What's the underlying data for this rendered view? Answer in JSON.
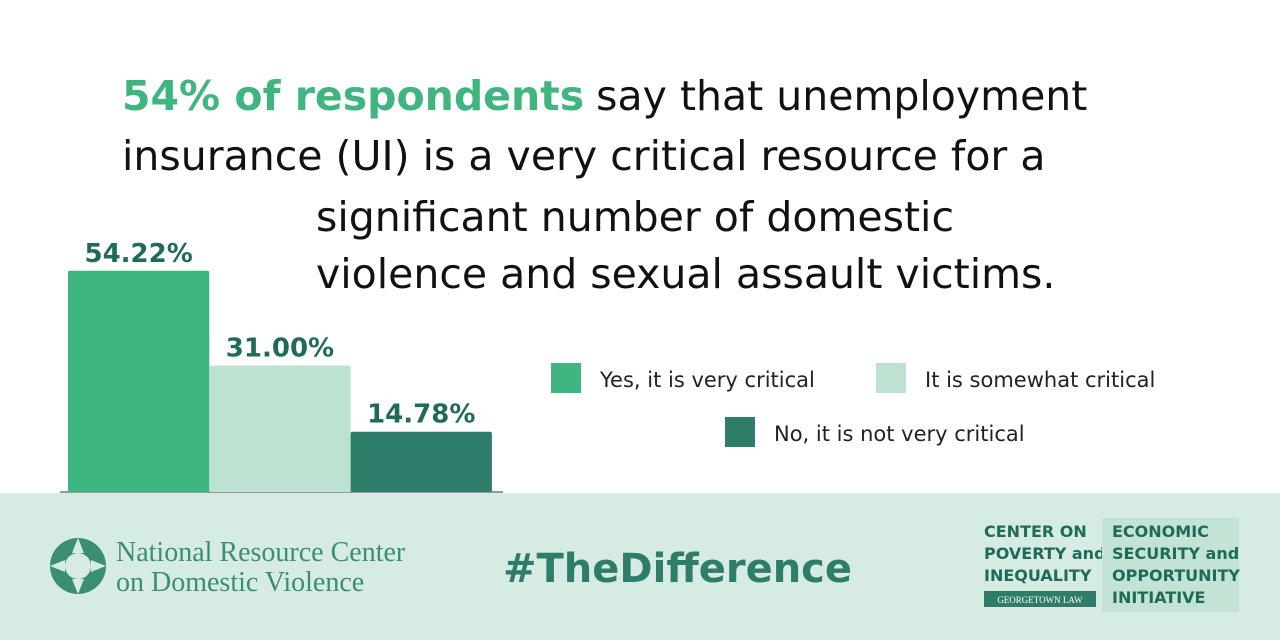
{
  "chart_data": {
    "type": "bar",
    "title": {
      "highlight": "54% of respondents",
      "lines": [
        "say that unemployment",
        "insurance (UI) is a very critical resource for a",
        "significant number of domestic",
        "violence and sexual assault victims."
      ]
    },
    "series": [
      {
        "name": "Yes, it is very critical",
        "color": "#3fb67f",
        "values": [
          54.22
        ],
        "value_labels": [
          "54.22%"
        ]
      },
      {
        "name": "It is somewhat critical",
        "color": "#bde2d1",
        "values": [
          31.0
        ],
        "value_labels": [
          "31.00%"
        ]
      },
      {
        "name": "No, it is not very critical",
        "color": "#2e7d6b",
        "values": [
          14.78
        ],
        "value_labels": [
          "14.78%"
        ]
      }
    ]
  },
  "footer": {
    "org_lines": [
      "National Resource Center",
      "on Domestic Violence"
    ],
    "hashtag": "#TheDifference",
    "center_lines": [
      "CENTER ON",
      "POVERTY and",
      "INEQUALITY"
    ],
    "center_sub": "GEORGETOWN LAW",
    "initiative_lines": [
      "ECONOMIC",
      "SECURITY and",
      "OPPORTUNITY",
      "INITIATIVE"
    ]
  }
}
